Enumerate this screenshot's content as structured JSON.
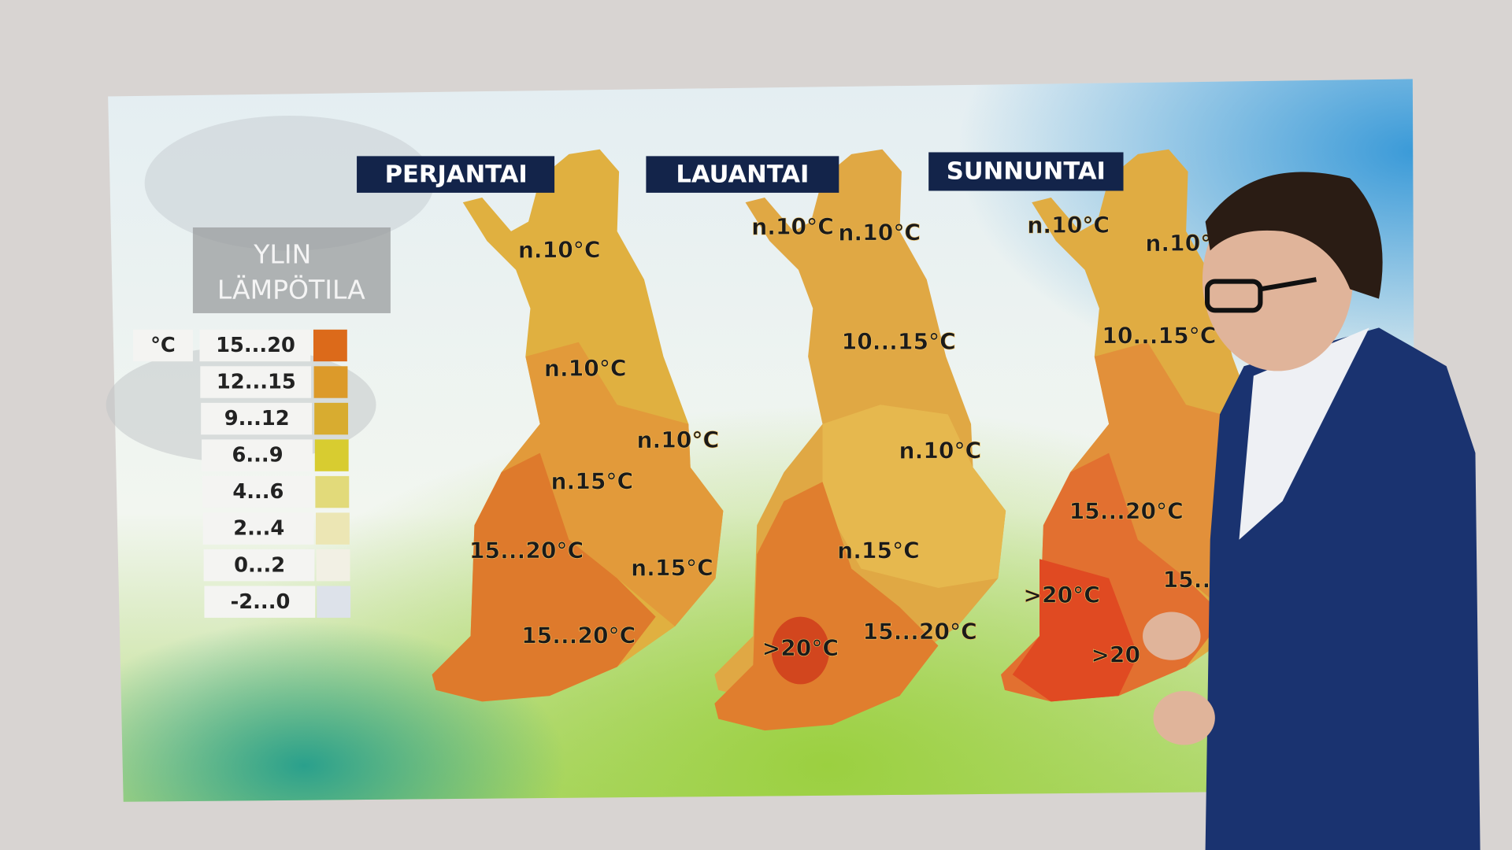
{
  "days": [
    {
      "label": "PERJANTAI",
      "labels": [
        "n.10°C",
        "n.10°C",
        "n.10°C",
        "n.15°C",
        "15...20°C",
        "n.15°C",
        "15...20°C"
      ]
    },
    {
      "label": "LAUANTAI",
      "labels": [
        "n.10°C",
        "n.10°C",
        "10...15°C",
        "n.10°C",
        "n.15°C",
        ">20°C",
        "15...20°C"
      ]
    },
    {
      "label": "SUNNUNTAI",
      "labels": [
        "n.10°C",
        "n.10°",
        "10...15°C",
        "15...20°C",
        ">20°C",
        "15...",
        ">20"
      ]
    }
  ],
  "legend": {
    "title_line1": "YLIN",
    "title_line2": "LÄMPÖTILA",
    "unit": "°C",
    "rows": [
      {
        "range": "15...20",
        "color": "#dc6a1a"
      },
      {
        "range": "12...15",
        "color": "#dc9a2a"
      },
      {
        "range": "9...12",
        "color": "#d8ac30"
      },
      {
        "range": "6...9",
        "color": "#d8cc30"
      },
      {
        "range": "4...6",
        "color": "#e2da7a"
      },
      {
        "range": "2...4",
        "color": "#ece6b4"
      },
      {
        "range": "0...2",
        "color": "#f2f0e4"
      },
      {
        "range": "-2...0",
        "color": "#dde2ea"
      }
    ]
  },
  "colors": {
    "header_bg": "#13244a",
    "suit": "#1a3370"
  }
}
